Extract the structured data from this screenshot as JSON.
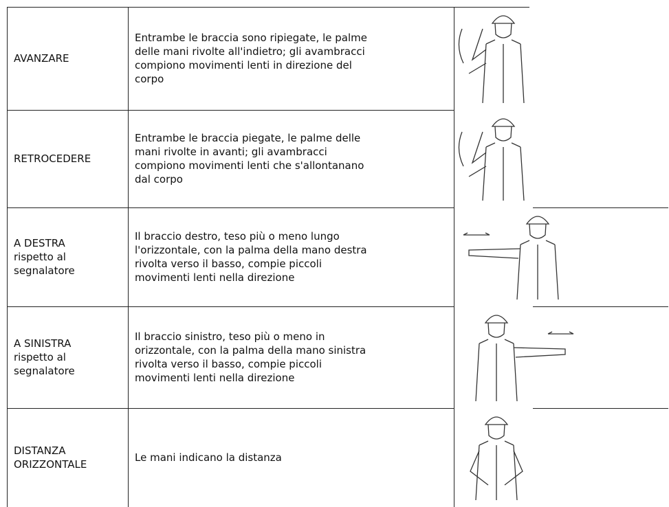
{
  "table": {
    "rows": [
      {
        "label": [
          "AVANZARE"
        ],
        "description": [
          "Entrambe le braccia sono ripiegate, le palme",
          "delle mani rivolte all'indietro; gli avambracci",
          "compiono movimenti lenti in direzione del",
          "corpo"
        ]
      },
      {
        "label": [
          "RETROCEDERE"
        ],
        "description": [
          "Entrambe le braccia piegate, le palme delle",
          "mani rivolte in avanti; gli avambracci",
          "compiono movimenti lenti che s'allontanano",
          "dal corpo"
        ]
      },
      {
        "label": [
          "A DESTRA",
          "rispetto al",
          "segnalatore"
        ],
        "description": [
          "Il braccio destro, teso più o meno lungo",
          "l'orizzontale, con la palma della mano destra",
          "rivolta verso il basso, compie piccoli",
          "movimenti lenti nella direzione"
        ]
      },
      {
        "label": [
          "A SINISTRA",
          "rispetto al",
          "segnalatore"
        ],
        "description": [
          "Il braccio sinistro, teso più o meno in",
          "orizzontale, con la palma della mano sinistra",
          "rivolta verso il basso, compie piccoli",
          "movimenti lenti nella direzione"
        ]
      },
      {
        "label": [
          "DISTANZA",
          "ORIZZONTALE"
        ],
        "description": [
          "Le mani indicano la distanza"
        ]
      }
    ]
  }
}
